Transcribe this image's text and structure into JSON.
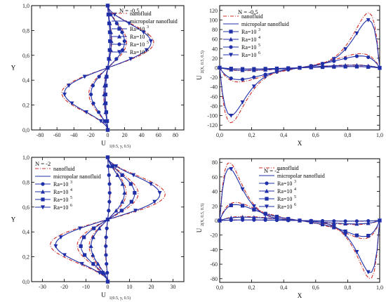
{
  "colors": {
    "nanofluid": "#d0302a",
    "micropolar": "#1f2fa8",
    "markers": "#1f2fa8",
    "axes": "#000000"
  },
  "chart_data": [
    {
      "type": "line",
      "n_label": "N = -0.5",
      "xlabel": "U",
      "xlabel_sub": "1(0.5, y, 0.5)",
      "ylabel": "Y",
      "xlim": [
        -90,
        90
      ],
      "ylim": [
        0,
        1
      ],
      "xticks": [
        -80,
        -60,
        -40,
        -20,
        0,
        20,
        40,
        60,
        80
      ],
      "xtick_labels": [
        "-80",
        "-60",
        "-40",
        "-20",
        "0",
        "20",
        "40",
        "60",
        "80"
      ],
      "yticks": [
        0,
        0.2,
        0.4,
        0.6,
        0.8,
        1.0
      ],
      "ytick_labels": [
        "0,0",
        "0,2",
        "0,4",
        "0,6",
        "0,8",
        "1,0"
      ],
      "legend": {
        "placement": "top-right",
        "nanofluid": "nanofluid",
        "micropolar": "micropolar nanofluid",
        "ra": [
          {
            "base": "Ra=10",
            "exp": "3",
            "marker": "square"
          },
          {
            "base": "Ra=10",
            "exp": "4",
            "marker": "triangle-up"
          },
          {
            "base": "Ra=10",
            "exp": "5",
            "marker": "circle"
          },
          {
            "base": "Ra=10",
            "exp": "6",
            "marker": "triangle-down"
          }
        ]
      },
      "series": [
        {
          "ra_exp": "3",
          "marker": "square",
          "amp_micro": 3,
          "amp_nano": 3.3
        },
        {
          "ra_exp": "4",
          "marker": "triangle-up",
          "amp_micro": 5,
          "amp_nano": 5.5
        },
        {
          "ra_exp": "5",
          "marker": "circle",
          "amp_micro": 24,
          "amp_nano": 27
        },
        {
          "ra_exp": "6",
          "marker": "triangle-down",
          "amp_micro": 64,
          "amp_nano": 68
        }
      ]
    },
    {
      "type": "line",
      "n_label": "N = -0.5",
      "xlabel": "X",
      "ylabel": "U",
      "ylabel_sub": "2(X, 0.5, 0.5)",
      "xlim": [
        0,
        1
      ],
      "ylim": [
        -130,
        130
      ],
      "xticks": [
        0,
        0.2,
        0.4,
        0.6,
        0.8,
        1.0
      ],
      "xtick_labels": [
        "0,0",
        "0,2",
        "0,4",
        "0,6",
        "0,8",
        "1,0"
      ],
      "yticks": [
        -120,
        -100,
        -80,
        -60,
        -40,
        -20,
        0,
        20,
        40,
        60,
        80,
        100,
        120
      ],
      "ytick_labels": [
        "-120",
        "-100",
        "-80",
        "-60",
        "-40",
        "-20",
        "0",
        "20",
        "40",
        "60",
        "80",
        "100",
        "120"
      ],
      "legend": {
        "placement": "top-left",
        "nanofluid": "nanofluid",
        "micropolar": "micropolar nanofluid",
        "ra": [
          {
            "base": "Ra=10",
            "exp": "3",
            "marker": "square"
          },
          {
            "base": "Ra=10",
            "exp": "4",
            "marker": "triangle-up"
          },
          {
            "base": "Ra=10",
            "exp": "5",
            "marker": "circle"
          },
          {
            "base": "Ra=10",
            "exp": "6",
            "marker": "triangle-down"
          }
        ]
      },
      "series": [
        {
          "ra_exp": "3",
          "marker": "square",
          "amp_micro": 3,
          "amp_nano": 3.5,
          "xpeak": 0.2
        },
        {
          "ra_exp": "4",
          "marker": "triangle-up",
          "amp_micro": 6,
          "amp_nano": 7,
          "xpeak": 0.18
        },
        {
          "ra_exp": "5",
          "marker": "circle",
          "amp_micro": 25,
          "amp_nano": 30,
          "xpeak": 0.12
        },
        {
          "ra_exp": "6",
          "marker": "triangle-down",
          "amp_micro": 100,
          "amp_nano": 115,
          "xpeak": 0.07
        }
      ]
    },
    {
      "type": "line",
      "n_label": "N = -2",
      "xlabel": "U",
      "xlabel_sub": "1(0.5, y, 0.5)",
      "ylabel": "Y",
      "xlim": [
        -35,
        35
      ],
      "ylim": [
        0,
        1
      ],
      "xticks": [
        -30,
        -20,
        -10,
        0,
        10,
        20,
        30
      ],
      "xtick_labels": [
        "-30",
        "-20",
        "-10",
        "0",
        "10",
        "20",
        "30"
      ],
      "yticks": [
        0,
        0.2,
        0.4,
        0.6,
        0.8,
        1.0
      ],
      "ytick_labels": [
        "0,0",
        "0,2",
        "0,4",
        "0,6",
        "0,8",
        "1,0"
      ],
      "legend": {
        "placement": "left",
        "nanofluid": "nanofluid",
        "micropolar": "micropolar nanofluid",
        "ra": [
          {
            "base": "Ra=10",
            "exp": "3",
            "marker": "circle"
          },
          {
            "base": "Ra=10",
            "exp": "4",
            "marker": "triangle-up"
          },
          {
            "base": "Ra=10",
            "exp": "5",
            "marker": "square"
          },
          {
            "base": "Ra=10",
            "exp": "6",
            "marker": "triangle-down"
          }
        ]
      },
      "series": [
        {
          "ra_exp": "3",
          "marker": "circle",
          "amp_micro": 1,
          "amp_nano": 1.2
        },
        {
          "ra_exp": "4",
          "marker": "triangle-up",
          "amp_micro": 9,
          "amp_nano": 10
        },
        {
          "ra_exp": "5",
          "marker": "square",
          "amp_micro": 15,
          "amp_nano": 17
        },
        {
          "ra_exp": "6",
          "marker": "triangle-down",
          "amp_micro": 30,
          "amp_nano": 33
        }
      ]
    },
    {
      "type": "line",
      "n_label": "N = -2",
      "xlabel": "X",
      "ylabel": "U",
      "ylabel_sub": "2(X, 0.5, 0.5)",
      "xlim": [
        0,
        1
      ],
      "ylim": [
        -85,
        85
      ],
      "xticks": [
        0,
        0.2,
        0.4,
        0.6,
        0.8,
        1.0
      ],
      "xtick_labels": [
        "0,0",
        "0,2",
        "0,4",
        "0,6",
        "0,8",
        "1,0"
      ],
      "yticks": [
        -80,
        -60,
        -40,
        -20,
        0,
        20,
        40,
        60,
        80
      ],
      "ytick_labels": [
        "-80",
        "-60",
        "-40",
        "-20",
        "0",
        "20",
        "40",
        "60",
        "80"
      ],
      "legend": {
        "placement": "top-center",
        "nanofluid": "nanofluid",
        "micropolar": "micropolar nanofluid",
        "ra": [
          {
            "base": "Ra=10",
            "exp": "3",
            "marker": "circle"
          },
          {
            "base": "Ra=10",
            "exp": "4",
            "marker": "triangle-up"
          },
          {
            "base": "Ra=10",
            "exp": "5",
            "marker": "square"
          },
          {
            "base": "Ra=10",
            "exp": "6",
            "marker": "triangle-down"
          }
        ]
      },
      "series": [
        {
          "ra_exp": "3",
          "marker": "circle",
          "amp_micro": 1,
          "amp_nano": 1.2,
          "xpeak": 0.2
        },
        {
          "ra_exp": "4",
          "marker": "triangle-up",
          "amp_micro": 5,
          "amp_nano": 6,
          "xpeak": 0.16
        },
        {
          "ra_exp": "5",
          "marker": "square",
          "amp_micro": 22,
          "amp_nano": 25,
          "xpeak": 0.1
        },
        {
          "ra_exp": "6",
          "marker": "triangle-down",
          "amp_micro": 72,
          "amp_nano": 80,
          "xpeak": 0.06
        }
      ]
    }
  ]
}
